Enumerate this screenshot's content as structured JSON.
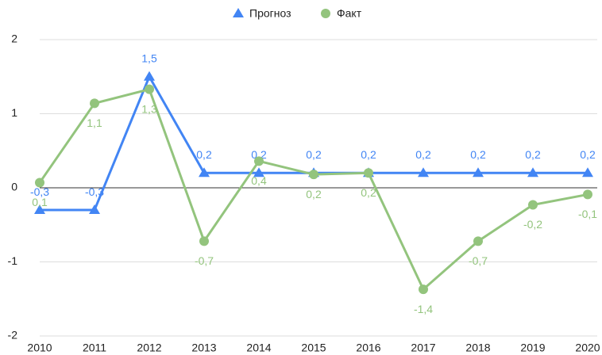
{
  "chart_data": {
    "type": "line",
    "categories": [
      "2010",
      "2011",
      "2012",
      "2013",
      "2014",
      "2015",
      "2016",
      "2017",
      "2018",
      "2019",
      "2020"
    ],
    "series": [
      {
        "name": "Прогноз",
        "color": "#4285f4",
        "marker": "triangle",
        "values": [
          -0.3,
          -0.3,
          1.5,
          0.2,
          0.2,
          0.2,
          0.2,
          0.2,
          0.2,
          0.2,
          0.2
        ],
        "value_labels": [
          "-0,3",
          "-0,3",
          "1,5",
          "0,2",
          "0,2",
          "0,2",
          "0,2",
          "0,2",
          "0,2",
          "0,2",
          "0,2"
        ]
      },
      {
        "name": "Факт",
        "color": "#93c47d",
        "marker": "circle",
        "values": [
          0.07,
          1.14,
          1.33,
          -0.72,
          0.36,
          0.18,
          0.2,
          -1.37,
          -0.72,
          -0.23,
          -0.09
        ],
        "value_labels": [
          "0,1",
          "1,1",
          "1,3",
          "-0,7",
          "0,4",
          "0,2",
          "0,2",
          "-1,4",
          "-0,7",
          "-0,2",
          "-0,1"
        ]
      }
    ],
    "ylim": [
      -2,
      2
    ],
    "yticks": [
      -2,
      -1,
      0,
      1,
      2
    ],
    "grid": true,
    "legend": "top"
  }
}
